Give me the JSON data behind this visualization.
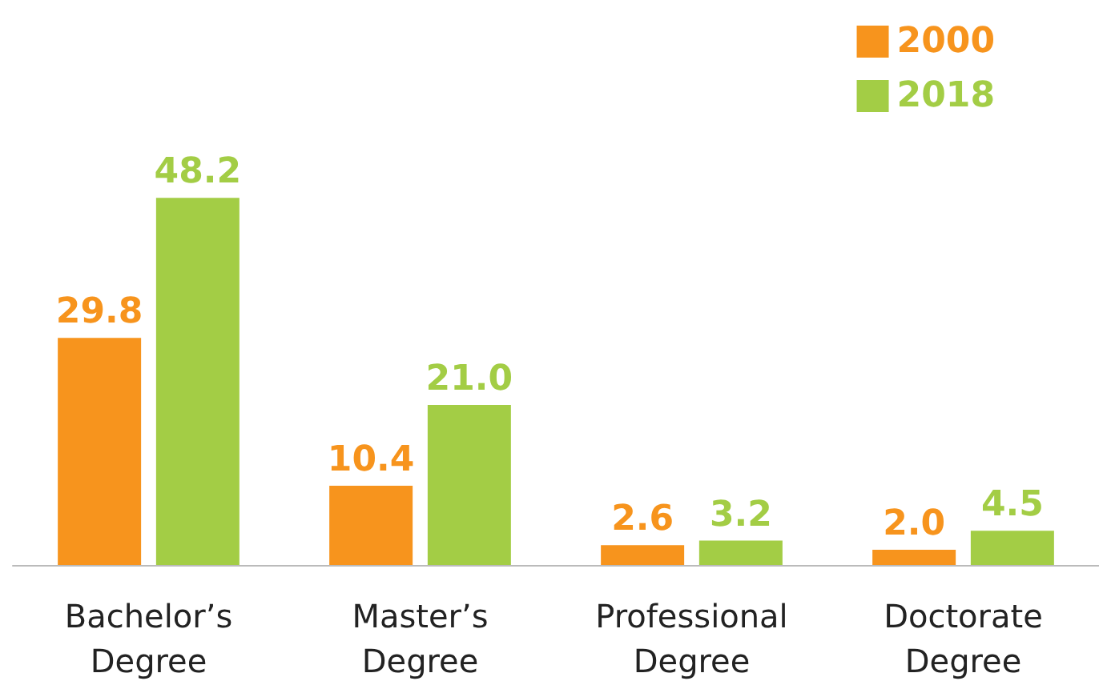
{
  "chart_data": {
    "type": "bar",
    "categories": [
      "Bachelor’s\nDegree",
      "Master’s\nDegree",
      "Professional\nDegree",
      "Doctorate\nDegree"
    ],
    "series": [
      {
        "name": "2000",
        "color": "#f7941d",
        "values": [
          29.8,
          10.4,
          2.6,
          2.0
        ],
        "value_labels": [
          "29.8",
          "10.4",
          "2.6",
          "2.0"
        ]
      },
      {
        "name": "2018",
        "color": "#a3cd45",
        "values": [
          48.2,
          21.0,
          3.2,
          4.5
        ],
        "value_labels": [
          "48.2",
          "21.0",
          "3.2",
          "4.5"
        ]
      }
    ],
    "legend": "top right"
  }
}
